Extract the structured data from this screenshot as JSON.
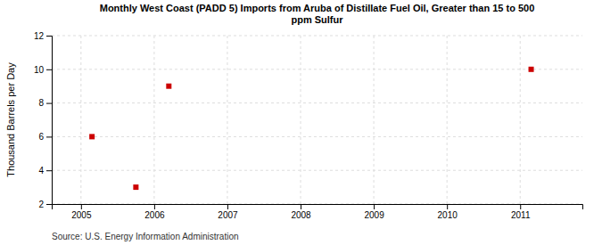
{
  "chart_data": {
    "type": "scatter",
    "title": "Monthly West Coast (PADD 5) Imports from Aruba of Distillate Fuel Oil, Greater than 15 to 500\nppm Sulfur",
    "ylabel": "Thousand Barrels per Day",
    "source": "Source: U.S. Energy Information Administration",
    "x": [
      2005.15,
      2005.75,
      2006.2,
      2011.15
    ],
    "values": [
      6,
      3,
      9,
      10
    ],
    "color": "#cc0000",
    "marker": "square",
    "xlim": [
      2004.6,
      2011.85
    ],
    "ylim": [
      2,
      12
    ],
    "xticks": [
      2005,
      2006,
      2007,
      2008,
      2009,
      2010,
      2011
    ],
    "yticks": [
      2,
      4,
      6,
      8,
      10,
      12
    ],
    "grid": true
  }
}
